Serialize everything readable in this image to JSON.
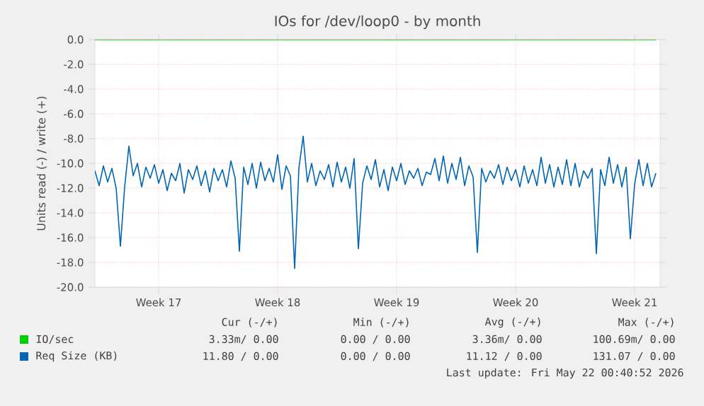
{
  "chart_data": {
    "type": "line",
    "title": "IOs for /dev/loop0 - by month",
    "ylabel": "Units read (-) / write (+)",
    "xlim": [
      "2026-04-19T18:00",
      "2026-05-23T00:00"
    ],
    "xticks": [
      {
        "value": "2026-04-23T12:00",
        "label": "Week 17"
      },
      {
        "value": "2026-04-30T12:00",
        "label": "Week 18"
      },
      {
        "value": "2026-05-07T12:00",
        "label": "Week 19"
      },
      {
        "value": "2026-05-14T12:00",
        "label": "Week 20"
      },
      {
        "value": "2026-05-21T12:00",
        "label": "Week 21"
      }
    ],
    "ylim": [
      -20,
      0
    ],
    "yticks": [
      {
        "value": 0,
        "label": "0.0"
      },
      {
        "value": -2,
        "label": "-2.0"
      },
      {
        "value": -4,
        "label": "-4.0"
      },
      {
        "value": -6,
        "label": "-6.0"
      },
      {
        "value": -8,
        "label": "-8.0"
      },
      {
        "value": -10,
        "label": "-10.0"
      },
      {
        "value": -12,
        "label": "-12.0"
      },
      {
        "value": -14,
        "label": "-14.0"
      },
      {
        "value": -16,
        "label": "-16.0"
      },
      {
        "value": -18,
        "label": "-18.0"
      },
      {
        "value": -20,
        "label": "-20.0"
      }
    ],
    "grid": true,
    "legend": "bottom",
    "series": [
      {
        "name": "IO/sec",
        "color": "#00cc00",
        "x": [
          "2026-04-19T18:00",
          "2026-05-22T18:00"
        ],
        "values": [
          0,
          0
        ]
      },
      {
        "name": "Req Size (KB)",
        "color": "#0066b3",
        "x": [
          "2026-04-19T18:00",
          "2026-04-20T00:00",
          "2026-04-20T06:00",
          "2026-04-20T12:00",
          "2026-04-20T18:00",
          "2026-04-21T00:00",
          "2026-04-21T06:00",
          "2026-04-21T12:00",
          "2026-04-21T18:00",
          "2026-04-22T00:00",
          "2026-04-22T06:00",
          "2026-04-22T12:00",
          "2026-04-22T18:00",
          "2026-04-23T00:00",
          "2026-04-23T06:00",
          "2026-04-23T12:00",
          "2026-04-23T18:00",
          "2026-04-24T00:00",
          "2026-04-24T06:00",
          "2026-04-24T12:00",
          "2026-04-24T18:00",
          "2026-04-25T00:00",
          "2026-04-25T06:00",
          "2026-04-25T12:00",
          "2026-04-25T18:00",
          "2026-04-26T00:00",
          "2026-04-26T06:00",
          "2026-04-26T12:00",
          "2026-04-26T18:00",
          "2026-04-27T00:00",
          "2026-04-27T06:00",
          "2026-04-27T12:00",
          "2026-04-27T18:00",
          "2026-04-28T00:00",
          "2026-04-28T06:00",
          "2026-04-28T12:00",
          "2026-04-28T18:00",
          "2026-04-29T00:00",
          "2026-04-29T06:00",
          "2026-04-29T12:00",
          "2026-04-29T18:00",
          "2026-04-30T00:00",
          "2026-04-30T06:00",
          "2026-04-30T12:00",
          "2026-04-30T18:00",
          "2026-05-01T00:00",
          "2026-05-01T06:00",
          "2026-05-01T12:00",
          "2026-05-01T18:00",
          "2026-05-02T00:00",
          "2026-05-02T06:00",
          "2026-05-02T12:00",
          "2026-05-02T18:00",
          "2026-05-03T00:00",
          "2026-05-03T06:00",
          "2026-05-03T12:00",
          "2026-05-03T18:00",
          "2026-05-04T00:00",
          "2026-05-04T06:00",
          "2026-05-04T12:00",
          "2026-05-04T18:00",
          "2026-05-05T00:00",
          "2026-05-05T06:00",
          "2026-05-05T12:00",
          "2026-05-05T18:00",
          "2026-05-06T00:00",
          "2026-05-06T06:00",
          "2026-05-06T12:00",
          "2026-05-06T18:00",
          "2026-05-07T00:00",
          "2026-05-07T06:00",
          "2026-05-07T12:00",
          "2026-05-07T18:00",
          "2026-05-08T00:00",
          "2026-05-08T06:00",
          "2026-05-08T12:00",
          "2026-05-08T18:00",
          "2026-05-09T00:00",
          "2026-05-09T06:00",
          "2026-05-09T12:00",
          "2026-05-09T18:00",
          "2026-05-10T00:00",
          "2026-05-10T06:00",
          "2026-05-10T12:00",
          "2026-05-10T18:00",
          "2026-05-11T00:00",
          "2026-05-11T06:00",
          "2026-05-11T12:00",
          "2026-05-11T18:00",
          "2026-05-12T00:00",
          "2026-05-12T06:00",
          "2026-05-12T12:00",
          "2026-05-12T18:00",
          "2026-05-13T00:00",
          "2026-05-13T06:00",
          "2026-05-13T12:00",
          "2026-05-13T18:00",
          "2026-05-14T00:00",
          "2026-05-14T06:00",
          "2026-05-14T12:00",
          "2026-05-14T18:00",
          "2026-05-15T00:00",
          "2026-05-15T06:00",
          "2026-05-15T12:00",
          "2026-05-15T18:00",
          "2026-05-16T00:00",
          "2026-05-16T06:00",
          "2026-05-16T12:00",
          "2026-05-16T18:00",
          "2026-05-17T00:00",
          "2026-05-17T06:00",
          "2026-05-17T12:00",
          "2026-05-17T18:00",
          "2026-05-18T00:00",
          "2026-05-18T06:00",
          "2026-05-18T12:00",
          "2026-05-18T18:00",
          "2026-05-19T00:00",
          "2026-05-19T06:00",
          "2026-05-19T12:00",
          "2026-05-19T18:00",
          "2026-05-20T00:00",
          "2026-05-20T06:00",
          "2026-05-20T12:00",
          "2026-05-20T18:00",
          "2026-05-21T00:00",
          "2026-05-21T06:00",
          "2026-05-21T12:00",
          "2026-05-21T18:00",
          "2026-05-22T00:00",
          "2026-05-22T06:00",
          "2026-05-22T12:00",
          "2026-05-22T18:00"
        ],
        "values": [
          -10.6,
          -11.8,
          -10.2,
          -11.5,
          -10.4,
          -12.0,
          -16.7,
          -11.9,
          -8.6,
          -11.0,
          -10.0,
          -11.9,
          -10.3,
          -11.2,
          -10.1,
          -11.6,
          -10.5,
          -12.2,
          -10.8,
          -11.4,
          -10.0,
          -12.4,
          -10.5,
          -11.3,
          -10.2,
          -11.8,
          -10.6,
          -12.3,
          -10.4,
          -11.4,
          -10.5,
          -11.9,
          -9.8,
          -11.2,
          -17.1,
          -10.3,
          -11.7,
          -10.0,
          -12.0,
          -9.9,
          -11.4,
          -10.4,
          -11.5,
          -9.3,
          -12.1,
          -10.2,
          -11.0,
          -18.5,
          -10.4,
          -7.8,
          -11.5,
          -10.0,
          -11.8,
          -10.6,
          -11.3,
          -10.1,
          -11.9,
          -9.9,
          -11.5,
          -10.3,
          -12.0,
          -9.6,
          -16.9,
          -11.6,
          -10.2,
          -11.3,
          -9.7,
          -11.9,
          -10.5,
          -12.2,
          -10.3,
          -11.4,
          -10.0,
          -11.7,
          -10.6,
          -11.2,
          -10.4,
          -11.8,
          -10.7,
          -10.9,
          -9.6,
          -11.4,
          -9.4,
          -11.6,
          -10.0,
          -11.3,
          -9.5,
          -11.8,
          -10.2,
          -11.1,
          -17.2,
          -10.4,
          -11.5,
          -10.6,
          -11.2,
          -10.1,
          -11.7,
          -10.3,
          -11.4,
          -10.5,
          -11.9,
          -10.2,
          -11.6,
          -10.5,
          -11.8,
          -9.5,
          -11.6,
          -10.1,
          -11.9,
          -10.3,
          -11.7,
          -9.7,
          -11.8,
          -10.0,
          -11.9,
          -10.6,
          -11.2,
          -10.4,
          -17.3,
          -10.5,
          -11.8,
          -9.5,
          -11.6,
          -10.1,
          -11.9,
          -10.3,
          -16.1,
          -11.7,
          -9.7,
          -11.8,
          -10.0,
          -11.9,
          -10.8
        ]
      }
    ],
    "annotations": [
      "Cur (-/+)",
      "Min (-/+)",
      "Avg (-/+)",
      "Max (-/+)",
      "3.33m/ 0.00",
      "0.00 / 0.00",
      "3.36m/ 0.00",
      "100.69m/ 0.00",
      "11.80 / 0.00",
      "0.00 / 0.00",
      "11.12 / 0.00",
      "131.07 / 0.00",
      "Last update: Fri May 22 00:40:52 2026"
    ]
  }
}
